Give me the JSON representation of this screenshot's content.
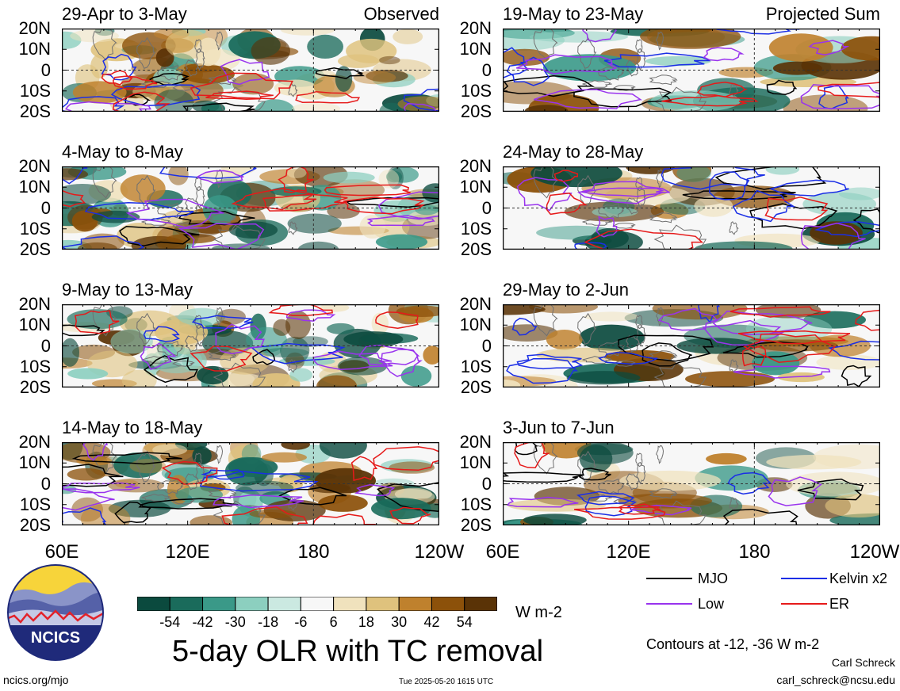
{
  "header": {
    "left_tag": "Observed",
    "right_tag": "Projected Sum"
  },
  "lat_labels": [
    "20N",
    "10N",
    "0",
    "10S",
    "20S"
  ],
  "lon_labels": [
    "60E",
    "120E",
    "180",
    "120W"
  ],
  "panels_left": [
    {
      "title": "29-Apr to 3-May"
    },
    {
      "title": "4-May to 8-May"
    },
    {
      "title": "9-May to 13-May"
    },
    {
      "title": "14-May to 18-May"
    }
  ],
  "panels_right": [
    {
      "title": "19-May to 23-May"
    },
    {
      "title": "24-May to 28-May"
    },
    {
      "title": "29-May to 2-Jun"
    },
    {
      "title": "3-Jun to 7-Jun"
    }
  ],
  "colorbar": {
    "labels": [
      "-54",
      "-42",
      "-30",
      "-18",
      "-6",
      "6",
      "18",
      "30",
      "42",
      "54"
    ],
    "colors": [
      "#0b4a3e",
      "#1a6b5b",
      "#3a9988",
      "#8ccfbf",
      "#cbe9e1",
      "#f7f7f7",
      "#f0e2bd",
      "#dfc27d",
      "#bf812d",
      "#8c510a",
      "#5a3306"
    ],
    "units": "W m-2"
  },
  "main_title": "5-day OLR with TC removal",
  "legend": {
    "items": [
      {
        "label": "MJO",
        "color": "#000000"
      },
      {
        "label": "Kelvin x2",
        "color": "#1a2ee6"
      },
      {
        "label": "Low",
        "color": "#9933ee"
      },
      {
        "label": "ER",
        "color": "#e61a1a"
      }
    ],
    "contours_note": "Contours at -12, -36 W m-2"
  },
  "logo": {
    "text": "NCICS"
  },
  "footer": {
    "left": "ncics.org/mjo",
    "center": "Tue 2025-05-20 1615 UTC",
    "author": "Carl Schreck",
    "email": "carl_schreck@ncsu.edu"
  }
}
